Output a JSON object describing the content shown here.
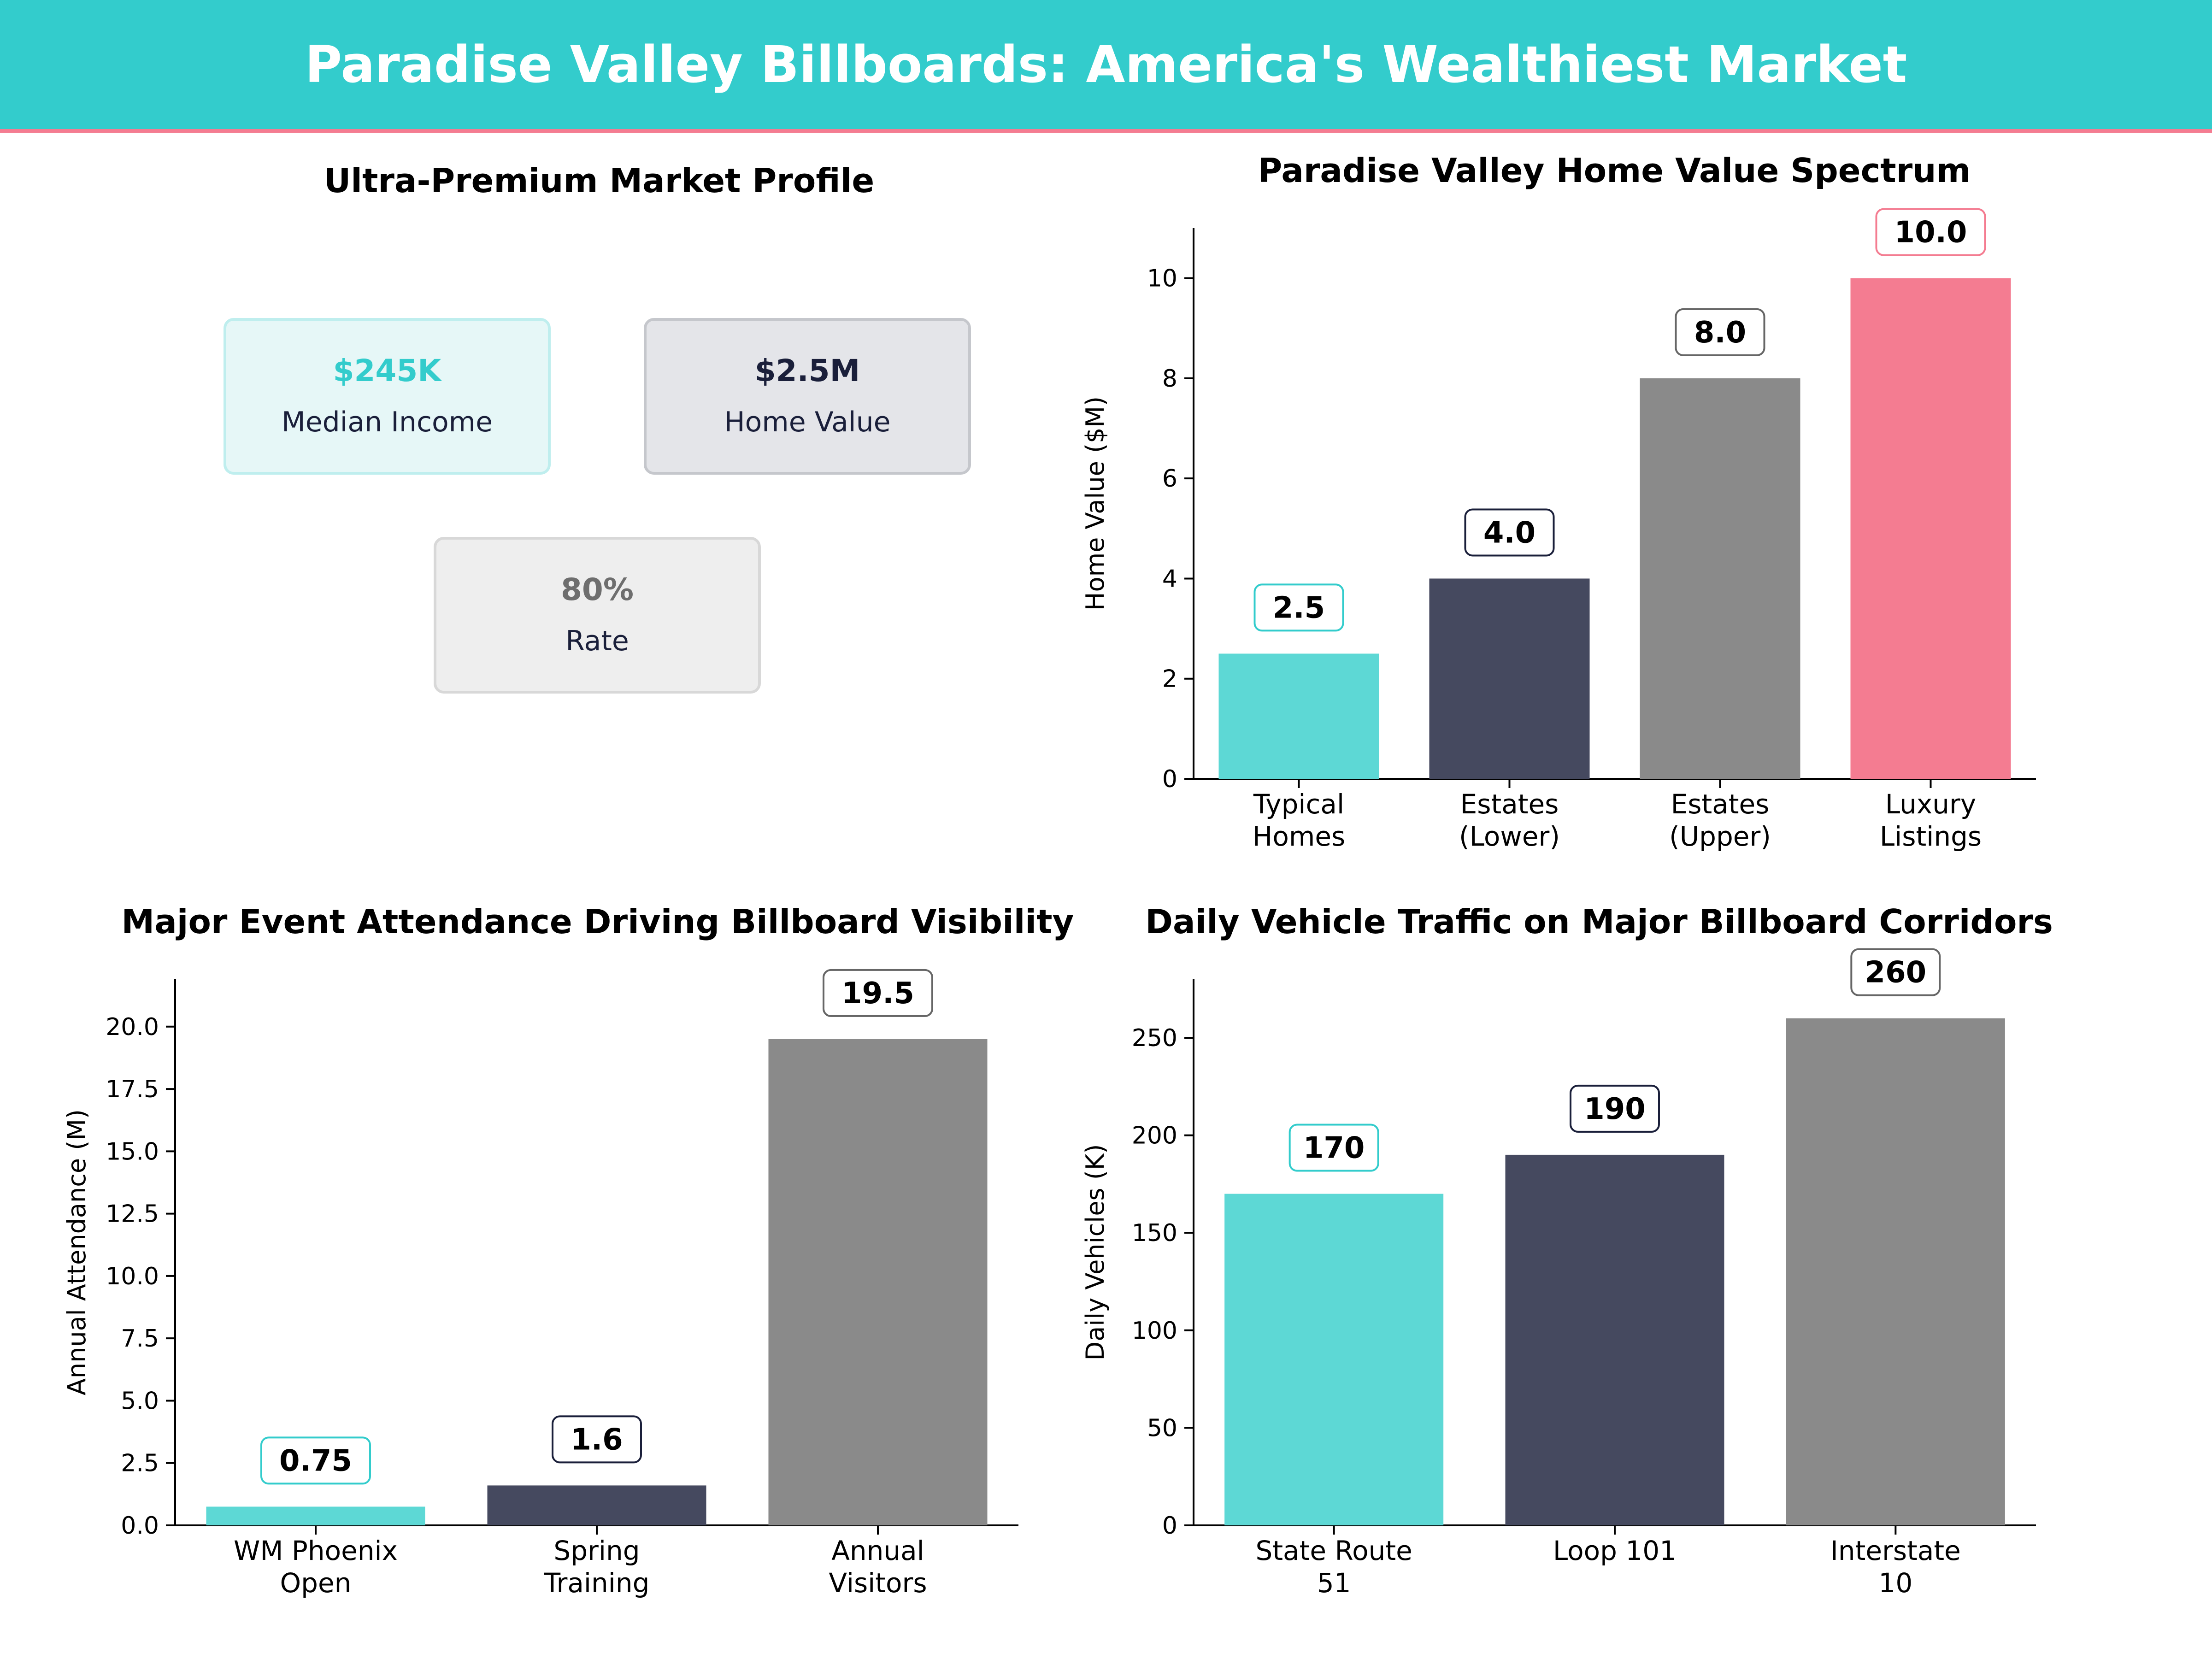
{
  "colors": {
    "teal": "#33cccc",
    "navy": "#45495f",
    "gray": "#8a8a8a",
    "pink": "#f47c91",
    "banner": "#33cccc",
    "banner_line": "#f47c91",
    "dark_text": "#1a1f3a"
  },
  "header": {
    "title": "Paradise Valley Billboards: America's Wealthiest Market"
  },
  "profile": {
    "title": "Ultra-Premium Market Profile",
    "cards": [
      {
        "value": "$245K",
        "label": "Median Income",
        "value_color": "#33cccc",
        "bg": "#e6f7f7",
        "border": "#bfeeee"
      },
      {
        "value": "$2.5M",
        "label": "Home Value",
        "value_color": "#1a1f3a",
        "bg": "#e4e5e9",
        "border": "#c5c7cc"
      },
      {
        "value": "80%",
        "label": "Rate",
        "value_color": "#6e6e6e",
        "bg": "#eeeeee",
        "border": "#d8d8d8"
      }
    ]
  },
  "chart_data": [
    {
      "id": "home",
      "type": "bar",
      "title": "Paradise Valley Home Value Spectrum",
      "ylabel": "Home Value ($M)",
      "categories": [
        [
          "Typical",
          "Homes"
        ],
        [
          "Estates",
          "(Lower)"
        ],
        [
          "Estates",
          "(Upper)"
        ],
        [
          "Luxury",
          "Listings"
        ]
      ],
      "values": [
        2.5,
        4.0,
        8.0,
        10.0
      ],
      "value_labels": [
        "2.5",
        "4.0",
        "8.0",
        "10.0"
      ],
      "colors": [
        "#5dd8d5",
        "#45495f",
        "#8a8a8a",
        "#f47c91"
      ],
      "ylim": [
        0,
        11
      ],
      "yticks": [
        0,
        2,
        4,
        6,
        8,
        10
      ],
      "ytick_labels": [
        "0",
        "2",
        "4",
        "6",
        "8",
        "10"
      ]
    },
    {
      "id": "events",
      "type": "bar",
      "title": "Major Event Attendance Driving Billboard Visibility",
      "ylabel": "Annual Attendance (M)",
      "categories": [
        [
          "WM Phoenix",
          "Open"
        ],
        [
          "Spring",
          "Training"
        ],
        [
          "Annual",
          "Visitors"
        ]
      ],
      "values": [
        0.75,
        1.6,
        19.5
      ],
      "value_labels": [
        "0.75",
        "1.6",
        "19.5"
      ],
      "colors": [
        "#5dd8d5",
        "#45495f",
        "#8a8a8a"
      ],
      "ylim": [
        0,
        21.9
      ],
      "yticks": [
        0,
        2.5,
        5,
        7.5,
        10,
        12.5,
        15,
        17.5,
        20
      ],
      "ytick_labels": [
        "0.0",
        "2.5",
        "5.0",
        "7.5",
        "10.0",
        "12.5",
        "15.0",
        "17.5",
        "20.0"
      ]
    },
    {
      "id": "traffic",
      "type": "bar",
      "title": "Daily Vehicle Traffic on Major Billboard Corridors",
      "ylabel": "Daily Vehicles (K)",
      "categories": [
        [
          "State Route",
          "51"
        ],
        [
          "Loop 101"
        ],
        [
          "Interstate",
          "10"
        ]
      ],
      "values": [
        170,
        190,
        260
      ],
      "value_labels": [
        "170",
        "190",
        "260"
      ],
      "colors": [
        "#5dd8d5",
        "#45495f",
        "#8a8a8a"
      ],
      "ylim": [
        0,
        280
      ],
      "yticks": [
        0,
        50,
        100,
        150,
        200,
        250
      ],
      "ytick_labels": [
        "0",
        "50",
        "100",
        "150",
        "200",
        "250"
      ]
    }
  ]
}
